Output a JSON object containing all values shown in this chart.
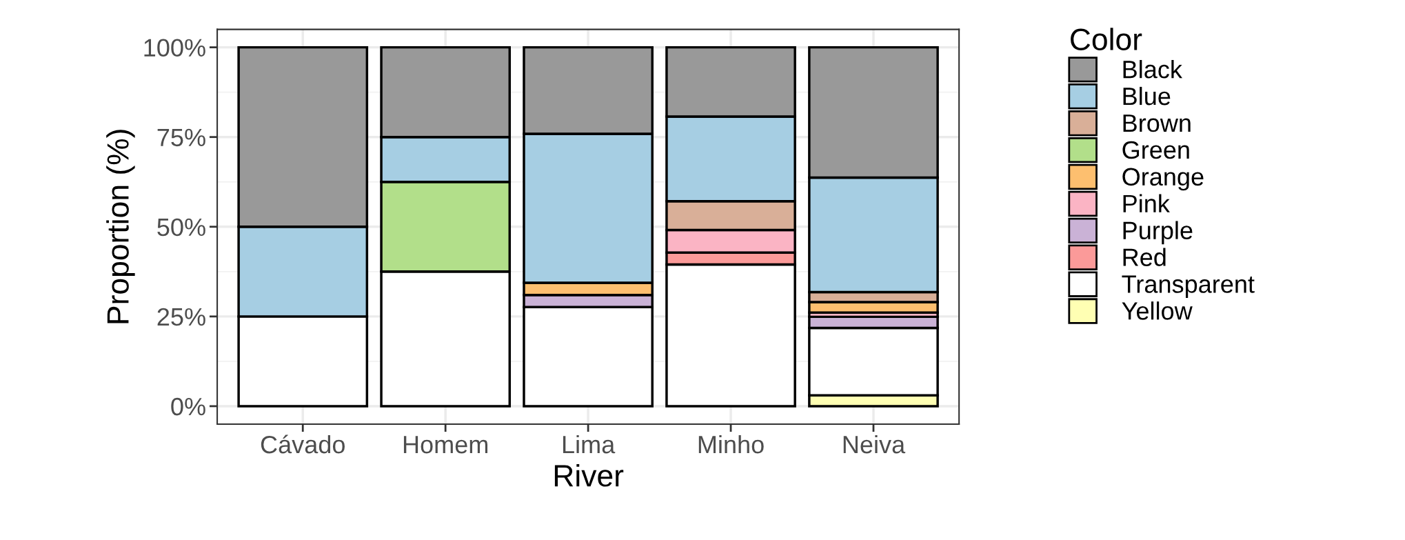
{
  "chart_data": {
    "type": "bar",
    "stacked": true,
    "xlabel": "River",
    "ylabel": "Proportion (%)",
    "legend_title": "Color",
    "categories": [
      "Cávado",
      "Homem",
      "Lima",
      "Minho",
      "Neiva"
    ],
    "series": [
      {
        "name": "Yellow",
        "color": "#ffffb3",
        "values": [
          null,
          null,
          null,
          null,
          3.0
        ]
      },
      {
        "name": "Transparent",
        "color": "#ffffff",
        "values": [
          25,
          37.5,
          27.6,
          39.5,
          18.8
        ]
      },
      {
        "name": "Red",
        "color": "#fb9a99",
        "values": [
          null,
          null,
          null,
          3.3,
          null
        ]
      },
      {
        "name": "Purple",
        "color": "#cab2d6",
        "values": [
          null,
          null,
          3.4,
          null,
          3.1
        ]
      },
      {
        "name": "Pink",
        "color": "#fbb4c4",
        "values": [
          null,
          null,
          null,
          6.3,
          1.2
        ]
      },
      {
        "name": "Orange",
        "color": "#fdbf6f",
        "values": [
          null,
          null,
          3.4,
          null,
          2.9
        ]
      },
      {
        "name": "Green",
        "color": "#b2df8a",
        "values": [
          null,
          25,
          null,
          null,
          null
        ]
      },
      {
        "name": "Brown",
        "color": "#d9af98",
        "values": [
          null,
          null,
          null,
          8.0,
          2.8
        ]
      },
      {
        "name": "Blue",
        "color": "#a6cee3",
        "values": [
          25,
          12.5,
          41.5,
          23.6,
          31.9
        ]
      },
      {
        "name": "Black",
        "color": "#999999",
        "values": [
          50,
          25,
          24.1,
          19.3,
          36.3
        ]
      }
    ],
    "ylim": [
      -5,
      105
    ],
    "yticks": [
      {
        "value": 0,
        "label": "0%"
      },
      {
        "value": 25,
        "label": "25%"
      },
      {
        "value": 50,
        "label": "50%"
      },
      {
        "value": 75,
        "label": "75%"
      },
      {
        "value": 100,
        "label": "100%"
      }
    ],
    "grid": true,
    "legend": "right"
  }
}
